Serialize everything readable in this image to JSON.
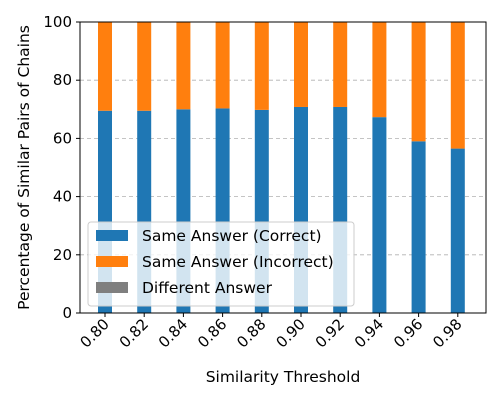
{
  "chart_data": {
    "type": "bar",
    "stacked": true,
    "categories": [
      "0.80",
      "0.82",
      "0.84",
      "0.86",
      "0.88",
      "0.90",
      "0.92",
      "0.94",
      "0.96",
      "0.98"
    ],
    "series": [
      {
        "name": "Same Answer (Correct)",
        "color": "#1f77b4",
        "values": [
          69.5,
          69.5,
          70.0,
          70.3,
          69.8,
          70.8,
          70.8,
          67.3,
          59.0,
          56.5
        ]
      },
      {
        "name": "Same Answer (Incorrect)",
        "color": "#ff7f0e",
        "values": [
          30.5,
          30.5,
          30.0,
          29.7,
          30.2,
          29.2,
          29.2,
          32.7,
          41.0,
          43.5
        ]
      },
      {
        "name": "Different Answer",
        "color": "#7f7f7f",
        "values": [
          0,
          0,
          0,
          0,
          0,
          0,
          0,
          0,
          0,
          0
        ]
      }
    ],
    "xlabel": "Similarity Threshold",
    "ylabel": "Percentage of Similar Pairs of Chains",
    "ylim": [
      0,
      100
    ],
    "yticks": [
      0,
      20,
      40,
      60,
      80,
      100
    ],
    "grid": "y-dashed",
    "legend_position": "lower-left"
  }
}
